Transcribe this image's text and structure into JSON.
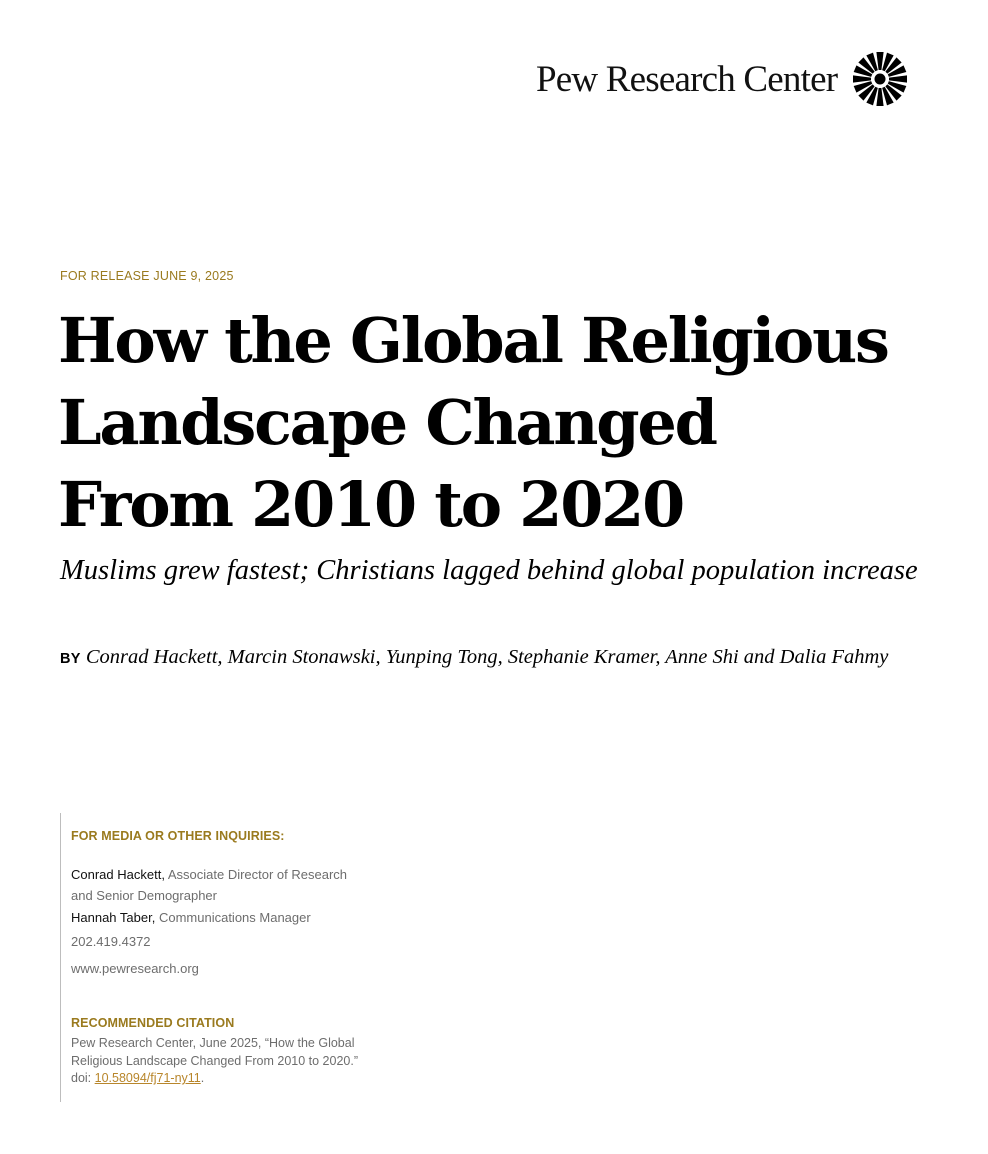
{
  "header": {
    "logo_text": "Pew Research Center",
    "logo_icon": "pew-sunburst-logo-icon"
  },
  "release": "FOR RELEASE JUNE 9, 2025",
  "title": {
    "line1": "How the Global Religious",
    "line2": "Landscape Changed",
    "line3": "From 2010 to 2020"
  },
  "subtitle": "Muslims grew fastest; Christians lagged behind global population increase",
  "byline": {
    "label": "BY",
    "authors": "Conrad Hackett, Marcin Stonawski, Yunping Tong, Stephanie Kramer, Anne Shi and Dalia Fahmy"
  },
  "media": {
    "heading": "FOR MEDIA OR OTHER INQUIRIES:",
    "contacts": [
      {
        "name": "Conrad Hackett,",
        "title": "Associate Director of Research and Senior Demographer"
      },
      {
        "name": "Hannah Taber,",
        "title": "Communications Manager"
      }
    ],
    "phone": "202.419.4372",
    "website": "www.pewresearch.org"
  },
  "citation": {
    "heading": "RECOMMENDED CITATION",
    "text": "Pew Research Center, June 2025, “How the Global Religious Landscape Changed From 2010 to 2020.” doi: ",
    "doi": "10.58094/fj71-ny11",
    "end": "."
  },
  "colors": {
    "accent_gold": "#9a7a1e",
    "link": "#b8862b",
    "muted_text": "#6d6d6d"
  }
}
